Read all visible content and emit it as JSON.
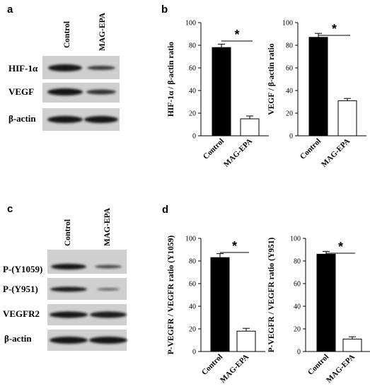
{
  "panels": {
    "a": "a",
    "b": "b",
    "c": "c",
    "d": "d"
  },
  "blot_a": {
    "lanes": [
      "Control",
      "MAG-EPA"
    ],
    "rows": [
      "HIF-1α",
      "VEGF",
      "β-actin"
    ]
  },
  "blot_c": {
    "lanes": [
      "Control",
      "MAG-EPA"
    ],
    "rows": [
      "P-(Y1059)",
      "P-(Y951)",
      "VEGFR2",
      "β-actin"
    ]
  },
  "colors": {
    "control_bar": "#000000",
    "treated_bar": "#ffffff",
    "blot_bg": "#cfcfcf",
    "band": "#1a1a1a"
  },
  "chart_data": [
    {
      "id": "hif",
      "type": "bar",
      "categories": [
        "Control",
        "MAG-EPA"
      ],
      "values": [
        78,
        15
      ],
      "errors": [
        3,
        2.5
      ],
      "ylabel": "HIF-1α / β-actin ratio",
      "ylim": [
        0,
        100
      ],
      "yticks": [
        0,
        20,
        40,
        60,
        80,
        100
      ],
      "significance": "*"
    },
    {
      "id": "vegf",
      "type": "bar",
      "categories": [
        "Control",
        "MAG-EPA"
      ],
      "values": [
        87,
        31
      ],
      "errors": [
        3.5,
        2
      ],
      "ylabel": "VEGF / β-actin ratio",
      "ylim": [
        0,
        100
      ],
      "yticks": [
        0,
        20,
        40,
        60,
        80,
        100
      ],
      "significance": "*"
    },
    {
      "id": "y1059",
      "type": "bar",
      "categories": [
        "Control",
        "MAG-EPA"
      ],
      "values": [
        83,
        18
      ],
      "errors": [
        3.5,
        2.5
      ],
      "ylabel": "P-VEGFR / VEGFR ratio (Y1059)",
      "ylim": [
        0,
        100
      ],
      "yticks": [
        0,
        20,
        40,
        60,
        80,
        100
      ],
      "significance": "*"
    },
    {
      "id": "y951",
      "type": "bar",
      "categories": [
        "Control",
        "MAG-EPA"
      ],
      "values": [
        86,
        11
      ],
      "errors": [
        2.5,
        2
      ],
      "ylabel": "P-VEGFR / VEGFR ratio (Y951)",
      "ylim": [
        0,
        100
      ],
      "yticks": [
        0,
        20,
        40,
        60,
        80,
        100
      ],
      "significance": "*"
    }
  ]
}
